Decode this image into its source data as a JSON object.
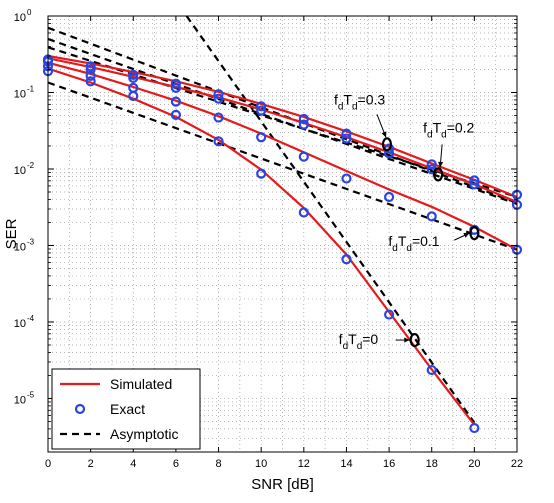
{
  "chart_data": {
    "type": "line",
    "title": "",
    "xlabel": "SNR [dB]",
    "ylabel": "SER",
    "xlim": [
      0,
      22
    ],
    "ylim_log10": [
      -5.7,
      0
    ],
    "y_scale": "log",
    "grid": true,
    "x_ticks": [
      "0",
      "2",
      "4",
      "6",
      "8",
      "10",
      "12",
      "14",
      "16",
      "18",
      "20",
      "22"
    ],
    "y_ticks": [
      {
        "base": "10",
        "exp": "0",
        "log": 0
      },
      {
        "base": "10",
        "exp": "-1",
        "log": -1
      },
      {
        "base": "10",
        "exp": "-2",
        "log": -2
      },
      {
        "base": "10",
        "exp": "-3",
        "log": -3
      },
      {
        "base": "10",
        "exp": "-4",
        "log": -4
      },
      {
        "base": "10",
        "exp": "-5",
        "log": -5
      }
    ],
    "legend": {
      "placement": "bottom-left",
      "entries": [
        "Simulated",
        "Exact",
        "Asymptotic"
      ]
    },
    "colors": {
      "simulated": "#e41a1c",
      "exact": "#2b46e0",
      "asymptotic": "#000000",
      "grid": "#9a9a9a"
    },
    "annotations": [
      {
        "parts": [
          "f",
          "d",
          "T",
          "d",
          "=0.3"
        ],
        "x": 15.9,
        "y": 0.021
      },
      {
        "parts": [
          "f",
          "d",
          "T",
          "d",
          "=0.2"
        ],
        "x": 18.3,
        "y": 0.0085
      },
      {
        "parts": [
          "f",
          "d",
          "T",
          "d",
          "=0.1"
        ],
        "x": 20.0,
        "y": 0.00145
      },
      {
        "parts": [
          "f",
          "d",
          "T",
          "d",
          "=0"
        ],
        "x": 17.2,
        "y": 5.8e-05
      }
    ],
    "simulated": [
      {
        "x": [
          0,
          2,
          4,
          6,
          8,
          10,
          12,
          14,
          16,
          18,
          20,
          22
        ],
        "y": [
          0.3,
          0.24,
          0.185,
          0.14,
          0.102,
          0.071,
          0.048,
          0.031,
          0.0195,
          0.0118,
          0.0072,
          0.0043
        ]
      },
      {
        "x": [
          0,
          2,
          4,
          6,
          8,
          10,
          12,
          14,
          16,
          18,
          20,
          22
        ],
        "y": [
          0.28,
          0.215,
          0.16,
          0.118,
          0.086,
          0.06,
          0.04,
          0.026,
          0.0165,
          0.0102,
          0.0063,
          0.0037
        ]
      },
      {
        "x": [
          0,
          2,
          4,
          6,
          8,
          10,
          12,
          14,
          16,
          18,
          20,
          22
        ],
        "y": [
          0.245,
          0.175,
          0.118,
          0.078,
          0.049,
          0.029,
          0.0165,
          0.0094,
          0.0054,
          0.0032,
          0.00175,
          0.00088
        ]
      },
      {
        "x": [
          0,
          2,
          4,
          6,
          8,
          10,
          12,
          14,
          16,
          18,
          20
        ],
        "y": [
          0.205,
          0.135,
          0.083,
          0.048,
          0.024,
          0.0098,
          0.0031,
          0.00076,
          0.000135,
          2.4e-05,
          4.5e-06
        ]
      }
    ],
    "exact": [
      {
        "x": [
          0,
          2,
          4,
          6,
          8,
          10,
          12,
          14,
          16,
          18,
          20,
          22
        ],
        "y": [
          0.27,
          0.22,
          0.17,
          0.13,
          0.095,
          0.066,
          0.045,
          0.029,
          0.0185,
          0.0115,
          0.0071,
          0.0046
        ]
      },
      {
        "x": [
          0,
          2,
          4,
          6,
          8,
          10,
          12,
          14,
          16,
          18,
          20,
          22
        ],
        "y": [
          0.255,
          0.2,
          0.155,
          0.115,
          0.083,
          0.058,
          0.038,
          0.025,
          0.016,
          0.0099,
          0.0063,
          0.0034
        ]
      },
      {
        "x": [
          0,
          2,
          4,
          6,
          8,
          10,
          12,
          14,
          16,
          18,
          20,
          22
        ],
        "y": [
          0.22,
          0.165,
          0.115,
          0.076,
          0.047,
          0.026,
          0.0145,
          0.0075,
          0.0043,
          0.0024,
          0.0016,
          0.00088
        ]
      },
      {
        "x": [
          0,
          2,
          4,
          6,
          8,
          10,
          12,
          14,
          16,
          18,
          20
        ],
        "y": [
          0.19,
          0.14,
          0.09,
          0.051,
          0.023,
          0.0087,
          0.0027,
          0.00066,
          0.000125,
          2.35e-05,
          4.1e-06
        ]
      }
    ],
    "asymptotic": [
      {
        "x": [
          0,
          22
        ],
        "y": [
          0.39,
          0.0043
        ]
      },
      {
        "x": [
          0,
          22
        ],
        "y": [
          0.5,
          0.0035
        ]
      },
      {
        "x": [
          0,
          22
        ],
        "y": [
          0.7,
          0.0036
        ]
      },
      {
        "x": [
          0,
          22
        ],
        "y": [
          0.135,
          0.00088
        ]
      },
      {
        "x": [
          6.5,
          20
        ],
        "y": [
          1.0,
          4.8e-06
        ]
      }
    ]
  }
}
